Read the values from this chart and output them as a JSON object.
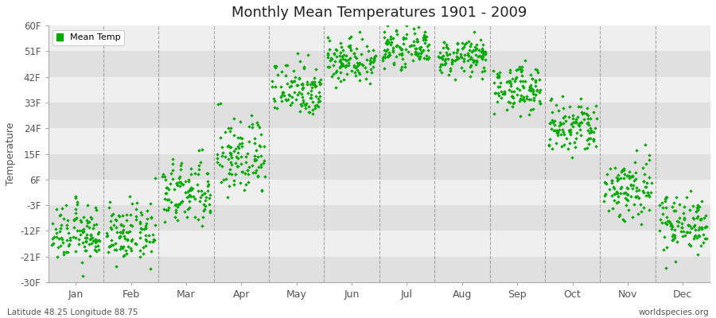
{
  "title": "Monthly Mean Temperatures 1901 - 2009",
  "ylabel": "Temperature",
  "footer_left": "Latitude 48.25 Longitude 88.75",
  "footer_right": "worldspecies.org",
  "legend_label": "Mean Temp",
  "dot_color": "#00aa00",
  "bg_color": "#ffffff",
  "plot_bg_light": "#efefef",
  "plot_bg_dark": "#e0e0e0",
  "vline_color": "#888888",
  "y_ticks": [
    -30,
    -21,
    -12,
    -3,
    6,
    15,
    24,
    33,
    42,
    51,
    60
  ],
  "y_labels": [
    "-30F",
    "-21F",
    "-12F",
    "-3F",
    "6F",
    "15F",
    "24F",
    "33F",
    "42F",
    "51F",
    "60F"
  ],
  "ylim": [
    -30,
    60
  ],
  "months": [
    "Jan",
    "Feb",
    "Mar",
    "Apr",
    "May",
    "Jun",
    "Jul",
    "Aug",
    "Sep",
    "Oct",
    "Nov",
    "Dec"
  ],
  "month_means_f": [
    -13,
    -13,
    1,
    14,
    38,
    48,
    52,
    49,
    38,
    24,
    3,
    -9
  ],
  "month_stds_f": [
    5,
    5,
    6,
    7,
    5,
    4,
    3,
    3,
    4,
    5,
    6,
    5
  ],
  "num_years": 109,
  "figsize": [
    9.0,
    4.0
  ],
  "dpi": 100
}
